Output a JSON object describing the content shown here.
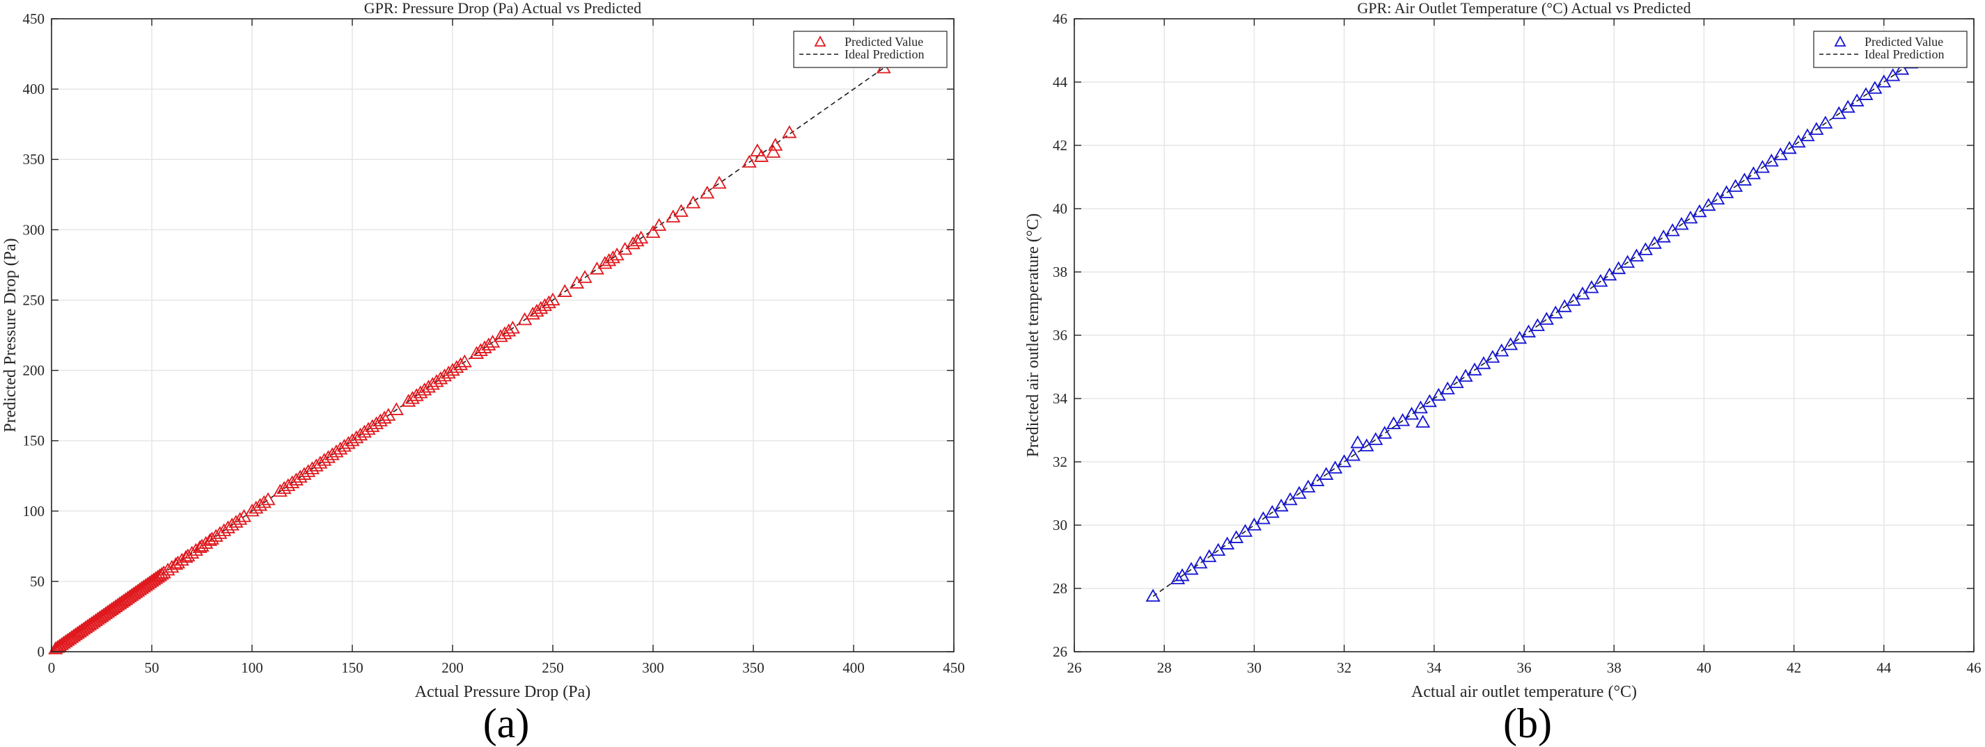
{
  "chart_data": [
    {
      "type": "scatter",
      "title": "GPR: Pressure Drop (Pa) Actual vs Predicted",
      "xlabel": "Actual Pressure Drop (Pa)",
      "ylabel": "Predicted Pressure Drop (Pa)",
      "xlim": [
        0,
        450
      ],
      "ylim": [
        0,
        450
      ],
      "xticks": [
        "0",
        "50",
        "100",
        "150",
        "200",
        "250",
        "300",
        "350",
        "400",
        "450"
      ],
      "yticks": [
        "0",
        "50",
        "100",
        "150",
        "200",
        "250",
        "300",
        "350",
        "400",
        "450"
      ],
      "grid": true,
      "legend_position": "top-right",
      "panel_label": "(a)",
      "colors": {
        "marker": "#e0191e",
        "ideal": "#1a1a1a"
      },
      "series": [
        {
          "name": "Predicted Value",
          "marker": "triangle",
          "x": [
            2,
            3,
            4,
            5,
            6,
            7,
            8,
            9,
            10,
            11,
            12,
            13,
            14,
            15,
            16,
            17,
            18,
            19,
            20,
            21,
            22,
            23,
            24,
            25,
            26,
            27,
            28,
            29,
            30,
            31,
            32,
            33,
            34,
            35,
            36,
            37,
            38,
            39,
            40,
            41,
            42,
            43,
            44,
            45,
            46,
            47,
            48,
            49,
            50,
            51,
            52,
            53,
            54,
            55,
            56,
            58,
            60,
            62,
            63,
            65,
            67,
            68,
            70,
            72,
            74,
            75,
            77,
            79,
            80,
            82,
            84,
            86,
            88,
            90,
            92,
            94,
            96,
            100,
            102,
            104,
            106,
            108,
            114,
            116,
            118,
            120,
            122,
            124,
            126,
            128,
            130,
            132,
            134,
            136,
            138,
            140,
            142,
            144,
            146,
            148,
            150,
            152,
            154,
            156,
            158,
            160,
            162,
            164,
            166,
            168,
            172,
            178,
            180,
            182,
            184,
            186,
            188,
            190,
            192,
            194,
            196,
            198,
            200,
            202,
            204,
            206,
            212,
            214,
            216,
            218,
            220,
            224,
            226,
            228,
            230,
            236,
            240,
            242,
            244,
            246,
            248,
            250,
            256,
            262,
            266,
            272,
            276,
            278,
            280,
            282,
            286,
            290,
            292,
            294,
            300,
            303,
            310,
            314,
            320,
            327,
            333,
            348,
            352,
            354,
            360,
            361,
            368,
            415
          ],
          "y": [
            2,
            3,
            4,
            5,
            6,
            7,
            8,
            9,
            10,
            11,
            12,
            13,
            14,
            15,
            16,
            17,
            18,
            19,
            20,
            21,
            22,
            23,
            24,
            25,
            26,
            27,
            28,
            29,
            30,
            31,
            32,
            33,
            34,
            35,
            36,
            37,
            38,
            39,
            40,
            41,
            42,
            43,
            44,
            45,
            46,
            47,
            48,
            49,
            50,
            51,
            52,
            53,
            54,
            55,
            56,
            58,
            60,
            62,
            63,
            65,
            67,
            68,
            70,
            72,
            74,
            75,
            77,
            79,
            80,
            82,
            84,
            86,
            88,
            90,
            92,
            94,
            96,
            100,
            102,
            104,
            106,
            108,
            114,
            116,
            118,
            120,
            122,
            124,
            126,
            128,
            130,
            132,
            134,
            136,
            138,
            140,
            142,
            144,
            146,
            148,
            150,
            152,
            154,
            156,
            158,
            160,
            162,
            164,
            166,
            168,
            172,
            178,
            180,
            182,
            184,
            186,
            188,
            190,
            192,
            194,
            196,
            198,
            200,
            202,
            204,
            206,
            212,
            214,
            216,
            218,
            220,
            224,
            226,
            228,
            230,
            236,
            240,
            242,
            244,
            246,
            248,
            250,
            256,
            262,
            266,
            272,
            276,
            278,
            280,
            282,
            286,
            290,
            292,
            294,
            298,
            303,
            309,
            313,
            319,
            326,
            333,
            348,
            356,
            352,
            355,
            360,
            369,
            415
          ]
        },
        {
          "name": "Ideal Prediction",
          "type": "line",
          "style": "dashed",
          "x": [
            0,
            415
          ],
          "y": [
            0,
            415
          ]
        }
      ]
    },
    {
      "type": "scatter",
      "title": "GPR: Air Outlet Temperature (°C) Actual vs Predicted",
      "xlabel": "Actual air outlet temperature (°C)",
      "ylabel": "Predicted air outlet temperature (°C)",
      "xlim": [
        26,
        46
      ],
      "ylim": [
        26,
        46
      ],
      "xticks": [
        "26",
        "28",
        "30",
        "32",
        "34",
        "36",
        "38",
        "40",
        "42",
        "44",
        "46"
      ],
      "yticks": [
        "26",
        "28",
        "30",
        "32",
        "34",
        "36",
        "38",
        "40",
        "42",
        "44",
        "46"
      ],
      "grid": true,
      "legend_position": "top-right",
      "panel_label": "(b)",
      "colors": {
        "marker": "#1414d4",
        "ideal": "#1a1a1a"
      },
      "series": [
        {
          "name": "Predicted Value",
          "marker": "triangle",
          "x": [
            27.75,
            28.3,
            28.4,
            28.6,
            28.8,
            29.0,
            29.2,
            29.4,
            29.6,
            29.8,
            30.0,
            30.2,
            30.4,
            30.6,
            30.8,
            31.0,
            31.2,
            31.4,
            31.6,
            31.8,
            32.0,
            32.2,
            32.3,
            32.5,
            32.7,
            32.9,
            33.1,
            33.3,
            33.5,
            33.7,
            33.75,
            33.9,
            34.1,
            34.3,
            34.5,
            34.7,
            34.9,
            35.1,
            35.3,
            35.5,
            35.7,
            35.9,
            36.1,
            36.3,
            36.5,
            36.7,
            36.9,
            37.1,
            37.3,
            37.5,
            37.7,
            37.9,
            38.1,
            38.3,
            38.5,
            38.7,
            38.9,
            39.1,
            39.3,
            39.5,
            39.7,
            39.9,
            40.1,
            40.3,
            40.5,
            40.7,
            40.9,
            41.1,
            41.3,
            41.5,
            41.7,
            41.9,
            42.1,
            42.3,
            42.5,
            42.7,
            43.0,
            43.2,
            43.4,
            43.6,
            43.8,
            44.0,
            44.2,
            44.4,
            44.6
          ],
          "y": [
            27.75,
            28.3,
            28.4,
            28.6,
            28.8,
            29.0,
            29.2,
            29.4,
            29.6,
            29.8,
            30.0,
            30.2,
            30.4,
            30.6,
            30.8,
            31.0,
            31.2,
            31.4,
            31.6,
            31.8,
            32.0,
            32.2,
            32.6,
            32.5,
            32.7,
            32.9,
            33.2,
            33.3,
            33.5,
            33.7,
            33.25,
            33.9,
            34.1,
            34.3,
            34.5,
            34.7,
            34.9,
            35.1,
            35.3,
            35.5,
            35.7,
            35.9,
            36.1,
            36.3,
            36.5,
            36.7,
            36.9,
            37.1,
            37.3,
            37.5,
            37.7,
            37.9,
            38.1,
            38.3,
            38.5,
            38.7,
            38.9,
            39.1,
            39.3,
            39.5,
            39.7,
            39.9,
            40.1,
            40.3,
            40.5,
            40.7,
            40.9,
            41.1,
            41.3,
            41.5,
            41.7,
            41.9,
            42.1,
            42.3,
            42.5,
            42.7,
            43.0,
            43.2,
            43.4,
            43.6,
            43.8,
            44.0,
            44.2,
            44.4,
            44.6
          ]
        },
        {
          "name": "Ideal Prediction",
          "type": "line",
          "style": "dashed",
          "x": [
            27.75,
            44.8
          ],
          "y": [
            27.75,
            44.8
          ]
        }
      ]
    }
  ]
}
